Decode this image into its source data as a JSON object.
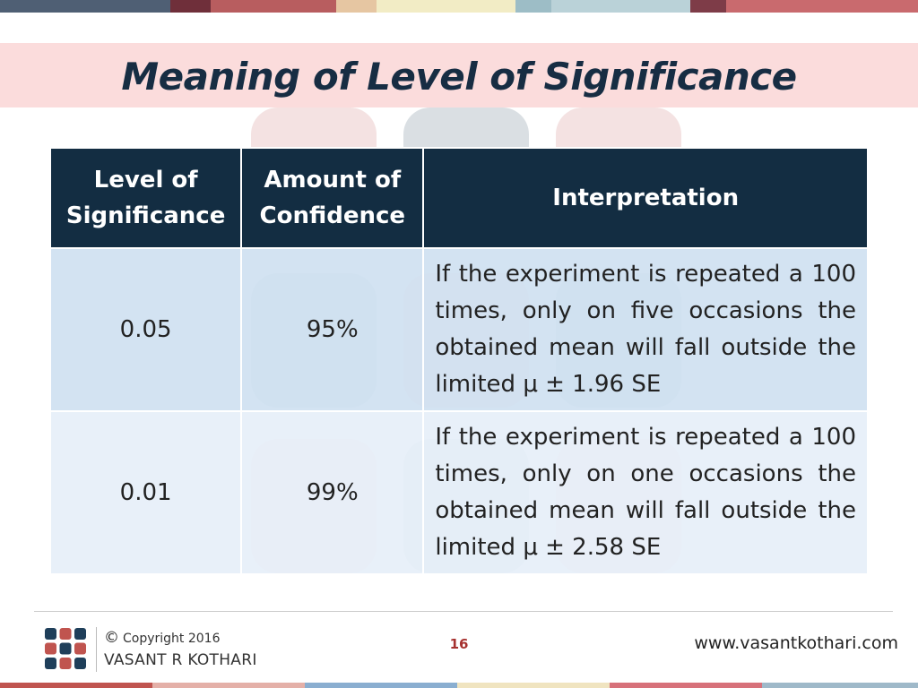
{
  "slide": {
    "title": "Meaning of Level of Significance"
  },
  "table": {
    "headers": [
      [
        "Level of",
        "Significance"
      ],
      [
        "Amount of",
        "Confidence"
      ],
      [
        "Interpretation"
      ]
    ],
    "rows": [
      {
        "level": "0.05",
        "confidence": "95%",
        "interpretation": "If the experiment is repeated a 100 times, only on five occasions the obtained mean will fall outside the limited μ ± 1.96 SE"
      },
      {
        "level": "0.01",
        "confidence": "99%",
        "interpretation": "If the experiment is repeated a 100 times, only on one occasions the obtained mean will fall outside the limited μ ± 2.58 SE"
      }
    ]
  },
  "footer": {
    "copyright_symbol": "©",
    "copyright_text": "Copyright 2016",
    "author": "VASANT R KOTHARI",
    "page_number": "16",
    "website": "www.vasantkothari.com"
  },
  "colors": {
    "header_bg": "#132d42",
    "title_color": "#172d43",
    "title_band": "#fbdcdc",
    "row_a": "#cfe1f1",
    "row_b": "#e6eff8",
    "accent_red": "#a6312f",
    "top_strip": [
      "#4f5f74",
      "#6f2f3a",
      "#b85d5f",
      "#e6c6a2",
      "#f2ecc5",
      "#9dbdc6",
      "#bad2d8",
      "#7e3c48",
      "#c96a6e"
    ],
    "bottom_strip": [
      "#c0544f",
      "#e4b0a8",
      "#8aaed0",
      "#f0e4c0",
      "#d7717a",
      "#9fb9c9"
    ]
  },
  "icons": {
    "logo": "vrk-logo-icon",
    "watermark": "watermark-pattern-icon"
  }
}
